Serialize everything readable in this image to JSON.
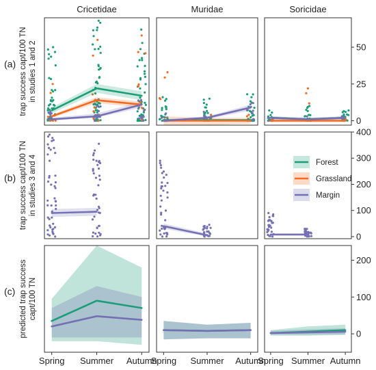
{
  "colors": {
    "forest": "#1b9e77",
    "grassland": "#f26b21",
    "margin": "#7570b3",
    "panel_border": "#333333",
    "text": "#222222"
  },
  "chart_data": {
    "type": "faceted-scatter-line",
    "facet_columns": [
      "Cricetidae",
      "Muridae",
      "Soricidae"
    ],
    "x_categories": [
      "Spring",
      "Summer",
      "Autumn"
    ],
    "row_tags": [
      "(a)",
      "(b)",
      "(c)"
    ],
    "row_ylabels": [
      [
        "trap success capt/100 TN",
        "in studies 1 and 2"
      ],
      [
        "trap success capt/100 TN",
        "in studies 3 and 4"
      ],
      [
        "predicted trap success",
        "capt/100 TN"
      ]
    ],
    "y_ticks": [
      [
        0,
        25,
        50
      ],
      [
        0,
        100,
        200,
        300,
        400
      ],
      [
        0,
        100,
        200
      ]
    ],
    "y_ranges": [
      [
        -3,
        70
      ],
      [
        -8,
        400
      ],
      [
        -50,
        240
      ]
    ],
    "legend": {
      "entries": [
        {
          "key": "forest",
          "label": "Forest"
        },
        {
          "key": "grassland",
          "label": "Grassland"
        },
        {
          "key": "margin",
          "label": "Margin"
        }
      ],
      "position": "inside-right of row (b), column Soricidae"
    },
    "row_a_lines": {
      "Cricetidae": {
        "forest": {
          "values": [
            7,
            22,
            17
          ],
          "lo": [
            5,
            19,
            14
          ],
          "hi": [
            9,
            25,
            20
          ]
        },
        "grassland": {
          "values": [
            3,
            14,
            11
          ],
          "lo": [
            2,
            12,
            9
          ],
          "hi": [
            4,
            16,
            13
          ]
        },
        "margin": {
          "values": [
            1,
            3,
            11
          ],
          "lo": [
            0,
            2,
            9
          ],
          "hi": [
            2,
            5,
            13
          ]
        }
      },
      "Muridae": {
        "forest": {
          "values": [
            0.5,
            0.5,
            0.5
          ],
          "lo": [
            0,
            0,
            0
          ],
          "hi": [
            1,
            1,
            1
          ]
        },
        "grassland": {
          "values": [
            0,
            0,
            0
          ],
          "lo": [
            -5,
            -3,
            -2
          ],
          "hi": [
            3,
            2,
            2
          ]
        },
        "margin": {
          "values": [
            0,
            2,
            9
          ],
          "lo": [
            -1,
            1,
            7
          ],
          "hi": [
            1,
            3,
            11
          ]
        }
      },
      "Soricidae": {
        "forest": {
          "values": [
            2,
            1,
            2
          ],
          "lo": [
            1,
            0,
            1
          ],
          "hi": [
            3,
            2,
            3
          ]
        },
        "grassland": {
          "values": [
            0,
            0,
            0
          ],
          "lo": [
            -1,
            -1,
            -1
          ],
          "hi": [
            1,
            1,
            1
          ]
        },
        "margin": {
          "values": [
            2,
            1,
            2
          ],
          "lo": [
            1,
            0,
            1
          ],
          "hi": [
            3,
            2,
            3
          ]
        }
      }
    },
    "row_b_lines": {
      "Cricetidae": {
        "margin": {
          "values": [
            90,
            95
          ],
          "lo": [
            75,
            80
          ],
          "hi": [
            105,
            110
          ],
          "x_index": [
            0,
            1
          ]
        }
      },
      "Muridae": {
        "margin": {
          "values": [
            40,
            5
          ],
          "lo": [
            30,
            0
          ],
          "hi": [
            50,
            12
          ],
          "x_index": [
            0,
            1
          ]
        }
      },
      "Soricidae": {
        "margin": {
          "values": [
            8,
            8
          ],
          "lo": [
            4,
            4
          ],
          "hi": [
            12,
            12
          ],
          "x_index": [
            0,
            1
          ]
        }
      }
    },
    "row_c_lines": {
      "Cricetidae": {
        "forest": {
          "values": [
            35,
            90,
            70
          ],
          "lo": [
            -20,
            -20,
            -30
          ],
          "hi": [
            95,
            240,
            180
          ]
        },
        "margin": {
          "values": [
            20,
            48,
            38
          ],
          "lo": [
            -10,
            -10,
            -10
          ],
          "hi": [
            70,
            130,
            100
          ]
        }
      },
      "Muridae": {
        "forest": {
          "values": [
            10,
            8,
            10
          ],
          "lo": [
            -15,
            -12,
            -12
          ],
          "hi": [
            35,
            25,
            30
          ]
        },
        "margin": {
          "values": [
            10,
            8,
            10
          ],
          "lo": [
            -15,
            -12,
            -12
          ],
          "hi": [
            35,
            25,
            30
          ]
        }
      },
      "Soricidae": {
        "forest": {
          "values": [
            2,
            6,
            10
          ],
          "lo": [
            -5,
            -5,
            -3
          ],
          "hi": [
            10,
            20,
            25
          ]
        },
        "margin": {
          "values": [
            2,
            4,
            6
          ],
          "lo": [
            -2,
            -2,
            -1
          ],
          "hi": [
            8,
            12,
            15
          ]
        }
      }
    }
  }
}
